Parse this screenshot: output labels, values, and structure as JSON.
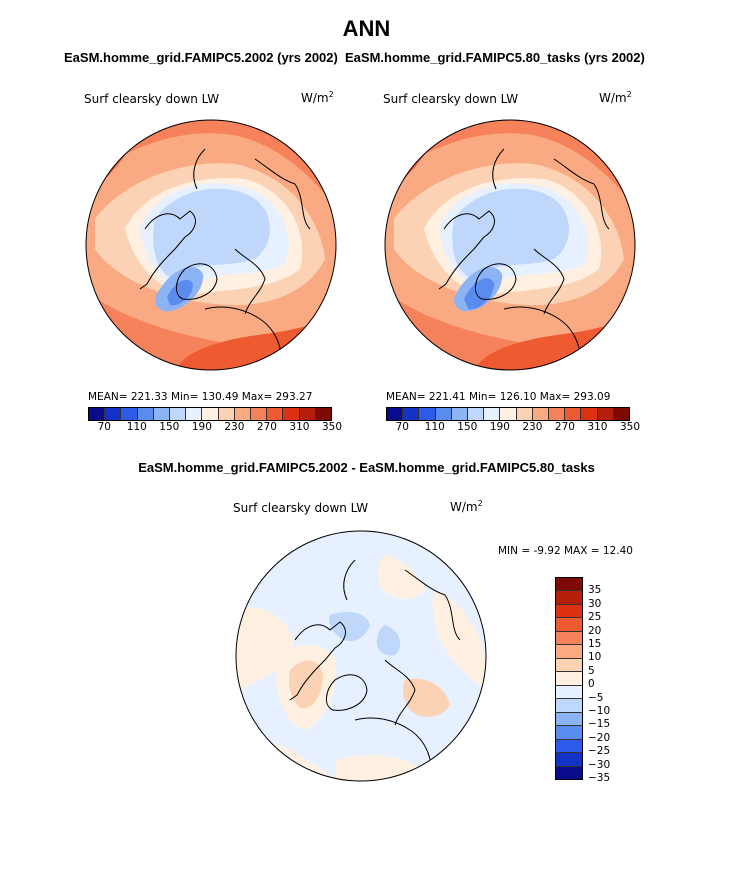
{
  "main_title": "ANN",
  "panel1": {
    "title": "EaSM.homme_grid.FAMIPC5.2002 (yrs 2002)",
    "variable": "Surf clearsky down LW",
    "units_base": "W/m",
    "units_exp": "2",
    "stats": "MEAN= 221.33   Min= 130.49   Max= 293.27",
    "colorbar_ticks": [
      "70",
      "110",
      "150",
      "190",
      "230",
      "270",
      "310",
      "350"
    ]
  },
  "panel2": {
    "title": "EaSM.homme_grid.FAMIPC5.80_tasks (yrs 2002)",
    "variable": "Surf clearsky down LW",
    "units_base": "W/m",
    "units_exp": "2",
    "stats": "MEAN= 221.41   Min= 126.10   Max= 293.09",
    "colorbar_ticks": [
      "70",
      "110",
      "150",
      "190",
      "230",
      "270",
      "310",
      "350"
    ]
  },
  "panel3": {
    "title": "EaSM.homme_grid.FAMIPC5.2002 - EaSM.homme_grid.FAMIPC5.80_tasks",
    "variable": "Surf clearsky down LW",
    "units_base": "W/m",
    "units_exp": "2",
    "stats": "MIN =  -9.92  MAX =  12.40",
    "colorbar_ticks": [
      "35",
      "30",
      "25",
      "20",
      "15",
      "10",
      "5",
      "0",
      "−5",
      "−10",
      "−15",
      "−20",
      "−25",
      "−30",
      "−35"
    ]
  },
  "colors": {
    "abs_scale": [
      "#0a0a8c",
      "#1432c8",
      "#2d5ae6",
      "#5a8cf0",
      "#8cb4f5",
      "#bed7fa",
      "#e6f0ff",
      "#fff0e1",
      "#fcd2b4",
      "#faaa82",
      "#f5825a",
      "#ee5a32",
      "#dc3214",
      "#b41e0a",
      "#7d0a05"
    ],
    "diff_scale": [
      "#7d0a05",
      "#b41e0a",
      "#dc3214",
      "#ee5a32",
      "#f5825a",
      "#faaa82",
      "#fcd2b4",
      "#fff0e1",
      "#e6f0ff",
      "#bed7fa",
      "#8cb4f5",
      "#5a8cf0",
      "#2d5ae6",
      "#1432c8",
      "#0a0a8c"
    ]
  }
}
